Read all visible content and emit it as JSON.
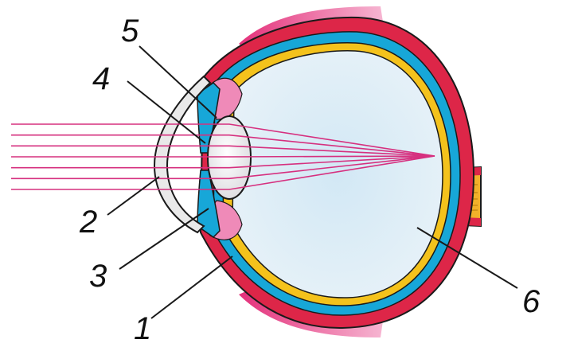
{
  "labels": [
    {
      "id": "1",
      "text": "1"
    },
    {
      "id": "2",
      "text": "2"
    },
    {
      "id": "3",
      "text": "3"
    },
    {
      "id": "4",
      "text": "4"
    },
    {
      "id": "5",
      "text": "5"
    },
    {
      "id": "6",
      "text": "6"
    }
  ],
  "colors": {
    "sclera": "#dd2648",
    "choroid": "#17a7d8",
    "retina": "#f4c21c",
    "vitreous": "#d9ebf5",
    "rays": "#d6307f",
    "muscle": "#ef5c9e",
    "optic_nerve": "#f2b02a",
    "cornea": "#e9e9e9",
    "outline": "#1a1a1a"
  },
  "ray_count": 7
}
